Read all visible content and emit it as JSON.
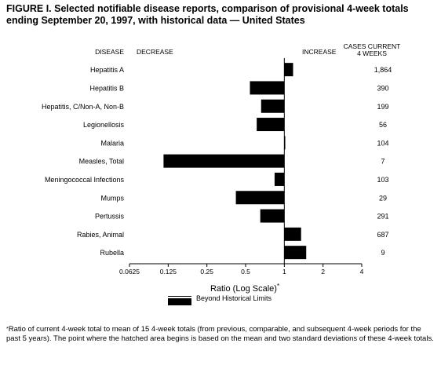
{
  "figure": {
    "title": "FIGURE I. Selected notifiable disease reports, comparison of provisional 4-week totals ending September 20, 1997, with historical data — United States",
    "footnote_mark": "*",
    "footnote": "Ratio of current 4-week total to mean of 15 4-week totals (from previous, comparable, and subsequent 4-week periods for the past 5 years). The point where the hatched area begins is based on the mean and two standard deviations of these 4-week totals.",
    "legend_label": "Beyond Historical Limits"
  },
  "chart_data": {
    "type": "bar",
    "orientation": "horizontal",
    "x_scale": "log2",
    "xlabel": "Ratio (Log Scale)",
    "xlabel_mark": "*",
    "xlim": [
      0.0625,
      4
    ],
    "xticks": [
      0.0625,
      0.125,
      0.25,
      0.5,
      1,
      2,
      4
    ],
    "xtick_labels": [
      "0.0625",
      "0.125",
      "0.25",
      "0.5",
      "1",
      "2",
      "4"
    ],
    "baseline": 1,
    "headers": {
      "disease": "DISEASE",
      "decrease": "DECREASE",
      "increase": "INCREASE",
      "cases_line1": "CASES CURRENT",
      "cases_line2": "4 WEEKS"
    },
    "categories": [
      "Hepatitis A",
      "Hepatitis B",
      "Hepatitis, C/Non-A, Non-B",
      "Legionellosis",
      "Malaria",
      "Measles, Total",
      "Meningococcal Infections",
      "Mumps",
      "Pertussis",
      "Rabies, Animal",
      "Rubella"
    ],
    "values": [
      1.17,
      0.54,
      0.66,
      0.61,
      1.01,
      0.115,
      0.84,
      0.42,
      0.65,
      1.35,
      1.48
    ],
    "cases": [
      "1,864",
      "390",
      "199",
      "56",
      "104",
      "7",
      "103",
      "29",
      "291",
      "687",
      "9"
    ]
  }
}
